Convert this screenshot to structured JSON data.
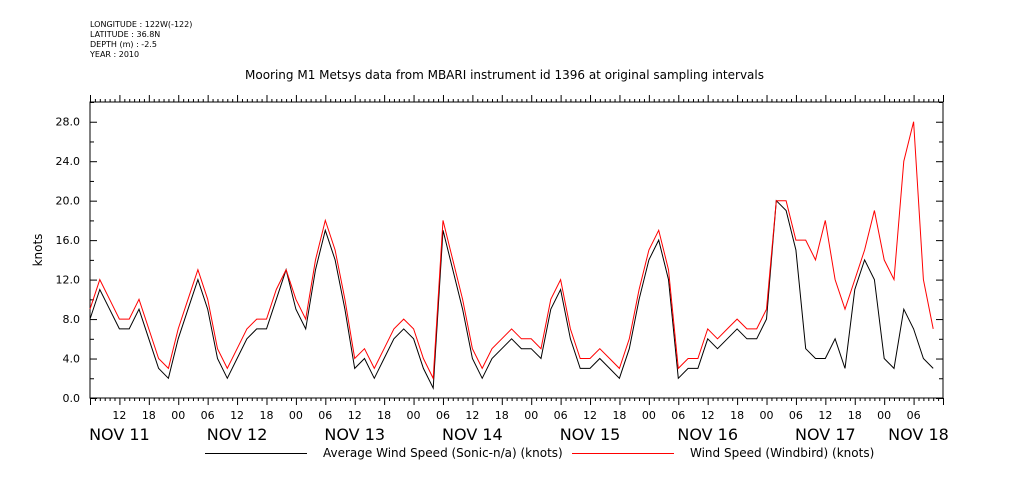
{
  "header": {
    "longitude": "LONGITUDE : 122W(-122)",
    "latitude": "LATITUDE : 36.8N",
    "depth": "DEPTH (m) : -2.5",
    "year": "YEAR : 2010"
  },
  "chart_data": {
    "type": "line",
    "title": "Mooring M1 Metsys data from MBARI instrument id 1396 at original sampling intervals",
    "xlabel": "",
    "ylabel": "knots",
    "xlim": [
      0,
      174
    ],
    "ylim": [
      0,
      30
    ],
    "yticks": [
      0,
      4,
      8,
      12,
      16,
      20,
      24,
      28
    ],
    "ytick_labels": [
      "0.0",
      "4.0",
      "8.0",
      "12.0",
      "16.0",
      "20.0",
      "24.0",
      "28.0"
    ],
    "x_hour_ticks": [
      {
        "x": 6,
        "label": "12"
      },
      {
        "x": 12,
        "label": "18"
      },
      {
        "x": 18,
        "label": "00"
      },
      {
        "x": 24,
        "label": "06"
      },
      {
        "x": 30,
        "label": "12"
      },
      {
        "x": 36,
        "label": "18"
      },
      {
        "x": 42,
        "label": "00"
      },
      {
        "x": 48,
        "label": "06"
      },
      {
        "x": 54,
        "label": "12"
      },
      {
        "x": 60,
        "label": "18"
      },
      {
        "x": 66,
        "label": "00"
      },
      {
        "x": 72,
        "label": "06"
      },
      {
        "x": 78,
        "label": "12"
      },
      {
        "x": 84,
        "label": "18"
      },
      {
        "x": 90,
        "label": "00"
      },
      {
        "x": 96,
        "label": "06"
      },
      {
        "x": 102,
        "label": "12"
      },
      {
        "x": 108,
        "label": "18"
      },
      {
        "x": 114,
        "label": "00"
      },
      {
        "x": 120,
        "label": "06"
      },
      {
        "x": 126,
        "label": "12"
      },
      {
        "x": 132,
        "label": "18"
      },
      {
        "x": 138,
        "label": "00"
      },
      {
        "x": 144,
        "label": "06"
      },
      {
        "x": 150,
        "label": "12"
      },
      {
        "x": 156,
        "label": "18"
      },
      {
        "x": 162,
        "label": "00"
      },
      {
        "x": 168,
        "label": "06"
      }
    ],
    "day_labels": [
      {
        "x": 6,
        "label": "NOV 11"
      },
      {
        "x": 30,
        "label": "NOV 12"
      },
      {
        "x": 54,
        "label": "NOV 13"
      },
      {
        "x": 78,
        "label": "NOV 14"
      },
      {
        "x": 102,
        "label": "NOV 15"
      },
      {
        "x": 126,
        "label": "NOV 16"
      },
      {
        "x": 150,
        "label": "NOV 17"
      },
      {
        "x": 169,
        "label": "NOV 18"
      }
    ],
    "x": [
      0,
      2,
      4,
      6,
      8,
      10,
      12,
      14,
      16,
      18,
      20,
      22,
      24,
      26,
      28,
      30,
      32,
      34,
      36,
      38,
      40,
      42,
      44,
      46,
      48,
      50,
      52,
      54,
      56,
      58,
      60,
      62,
      64,
      66,
      68,
      70,
      72,
      74,
      76,
      78,
      80,
      82,
      84,
      86,
      88,
      90,
      92,
      94,
      96,
      98,
      100,
      102,
      104,
      106,
      108,
      110,
      112,
      114,
      116,
      118,
      120,
      122,
      124,
      126,
      128,
      130,
      132,
      134,
      136,
      138,
      140,
      142,
      144,
      146,
      148,
      150,
      152,
      154,
      156,
      158,
      160,
      162,
      164,
      166,
      168,
      170,
      172
    ],
    "series": [
      {
        "name": "Average Wind Speed (Sonic-n/a) (knots)",
        "color": "#000000",
        "values": [
          8,
          11,
          9,
          7,
          7,
          9,
          6,
          3,
          2,
          6,
          9,
          12,
          9,
          4,
          2,
          4,
          6,
          7,
          7,
          10,
          13,
          9,
          7,
          13,
          17,
          14,
          9,
          3,
          4,
          2,
          4,
          6,
          7,
          6,
          3,
          1,
          17,
          13,
          9,
          4,
          2,
          4,
          5,
          6,
          5,
          5,
          4,
          9,
          11,
          6,
          3,
          3,
          4,
          3,
          2,
          5,
          10,
          14,
          16,
          12,
          2,
          3,
          3,
          6,
          5,
          6,
          7,
          6,
          6,
          8,
          20,
          19,
          15,
          5,
          4,
          4,
          6,
          3,
          11,
          14,
          12,
          4,
          3,
          9,
          7,
          4,
          3
        ]
      },
      {
        "name": "Wind Speed (Windbird) (knots)",
        "color": "#ff0000",
        "values": [
          9,
          12,
          10,
          8,
          8,
          10,
          7,
          4,
          3,
          7,
          10,
          13,
          10,
          5,
          3,
          5,
          7,
          8,
          8,
          11,
          13,
          10,
          8,
          14,
          18,
          15,
          10,
          4,
          5,
          3,
          5,
          7,
          8,
          7,
          4,
          2,
          18,
          14,
          10,
          5,
          3,
          5,
          6,
          7,
          6,
          6,
          5,
          10,
          12,
          7,
          4,
          4,
          5,
          4,
          3,
          6,
          11,
          15,
          17,
          13,
          3,
          4,
          4,
          7,
          6,
          7,
          8,
          7,
          7,
          9,
          20,
          20,
          16,
          16,
          14,
          18,
          12,
          9,
          12,
          15,
          19,
          14,
          12,
          24,
          28,
          12,
          7
        ]
      }
    ]
  }
}
